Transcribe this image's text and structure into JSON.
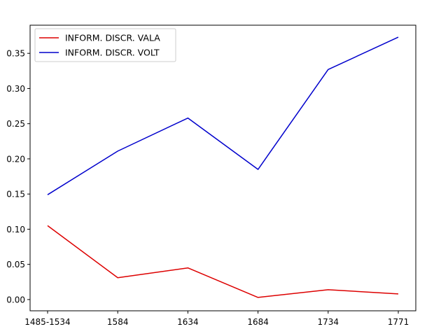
{
  "chart_data": {
    "type": "line",
    "title": "",
    "xlabel": "",
    "ylabel": "",
    "categories": [
      "1485-1534",
      "1584",
      "1634",
      "1684",
      "1734",
      "1771"
    ],
    "series": [
      {
        "name": "INFORM. DISCR. VALA",
        "color": "#dd0000",
        "values": [
          0.105,
          0.031,
          0.045,
          0.003,
          0.014,
          0.008
        ]
      },
      {
        "name": "INFORM. DISCR. VOLT",
        "color": "#0000cc",
        "values": [
          0.149,
          0.211,
          0.258,
          0.185,
          0.327,
          0.373
        ]
      }
    ],
    "ylim": [
      -0.016,
      0.39
    ],
    "yticks": [
      0.0,
      0.05,
      0.1,
      0.15,
      0.2,
      0.25,
      0.3,
      0.35
    ],
    "ytick_labels": [
      "0.00",
      "0.05",
      "0.10",
      "0.15",
      "0.20",
      "0.25",
      "0.30",
      "0.35"
    ],
    "grid": false,
    "legend_position": "upper-left"
  }
}
